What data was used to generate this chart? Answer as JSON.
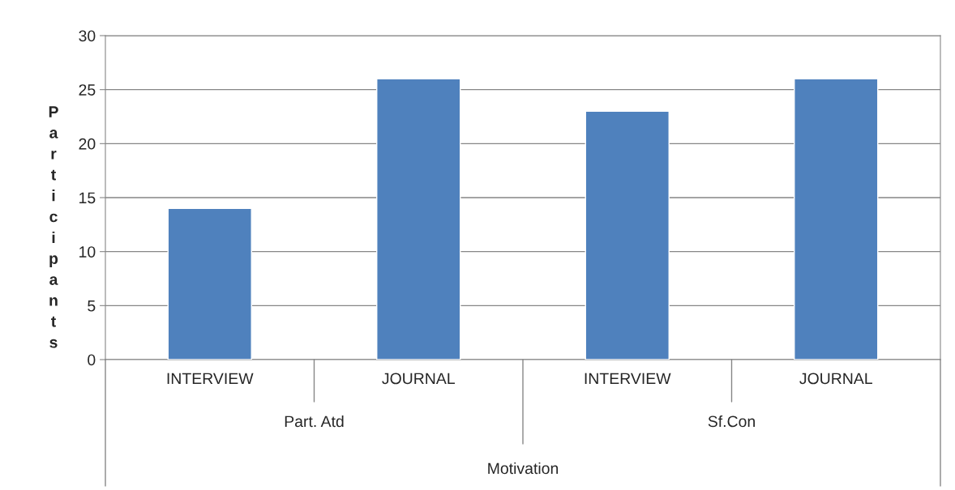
{
  "chart_data": {
    "type": "bar",
    "categories": [
      "INTERVIEW",
      "JOURNAL",
      "INTERVIEW",
      "JOURNAL"
    ],
    "values": [
      14,
      26,
      23,
      26
    ],
    "color": "#4f81bd",
    "ylim": [
      0,
      30
    ],
    "yticks": [
      0,
      5,
      10,
      15,
      20,
      25,
      30
    ],
    "grid": "y",
    "ylabel": "Participants",
    "xlabel": "Motivation",
    "annotations": [
      "Part. Atd",
      "Sf.Con"
    ]
  }
}
